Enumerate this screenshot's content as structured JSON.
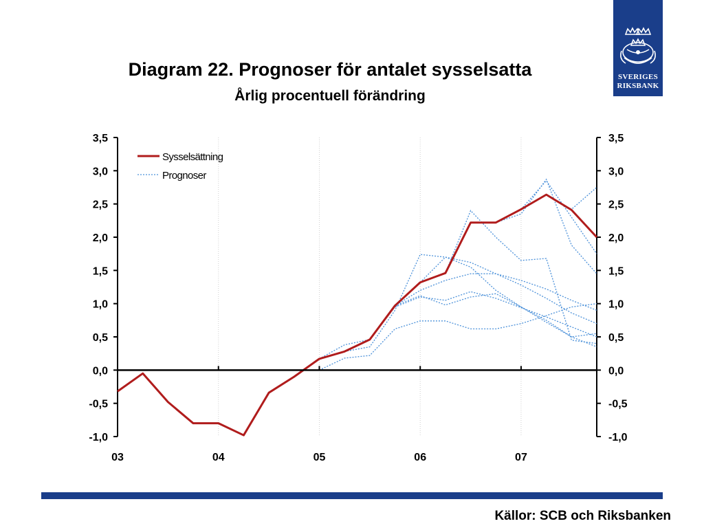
{
  "page": {
    "title": "Diagram 22. Prognoser för antalet sysselsatta",
    "subtitle": "Årlig procentuell förändring",
    "source": "Källor: SCB och Riksbanken",
    "logo": {
      "line1": "SVERIGES",
      "line2": "RIKSBANK",
      "icon": "riksbank-crest-icon",
      "color": "#1a3e8a"
    }
  },
  "chart_data": {
    "type": "line",
    "x_tick_labels": [
      "03",
      "04",
      "05",
      "06",
      "07"
    ],
    "y_tick_labels": [
      "3,5",
      "3,0",
      "2,5",
      "2,0",
      "1,5",
      "1,0",
      "0,5",
      "0,0",
      "-0,5",
      "-1,0"
    ],
    "y_ticks": [
      3.5,
      3.0,
      2.5,
      2.0,
      1.5,
      1.0,
      0.5,
      0.0,
      -0.5,
      -1.0
    ],
    "ylim": [
      -1.0,
      3.5
    ],
    "xlim": [
      2003.0,
      2007.75
    ],
    "legend": {
      "placement": "top-left",
      "entries": [
        "Sysselsättning",
        "Prognoser"
      ]
    },
    "colors": {
      "actual": "#b01c1c",
      "forecast": "#4a90d9",
      "axis": "#000000",
      "brand": "#1a3e8a"
    },
    "actual": {
      "name": "Sysselsättning",
      "points": [
        [
          2003.0,
          -0.32
        ],
        [
          2003.25,
          -0.05
        ],
        [
          2003.5,
          -0.48
        ],
        [
          2003.75,
          -0.8
        ],
        [
          2004.0,
          -0.8
        ],
        [
          2004.25,
          -0.98
        ],
        [
          2004.5,
          -0.34
        ],
        [
          2004.75,
          -0.1
        ],
        [
          2005.0,
          0.17
        ],
        [
          2005.25,
          0.28
        ],
        [
          2005.5,
          0.46
        ],
        [
          2005.75,
          0.97
        ],
        [
          2006.0,
          1.32
        ],
        [
          2006.25,
          1.46
        ],
        [
          2006.5,
          2.22
        ],
        [
          2006.75,
          2.22
        ],
        [
          2007.0,
          2.42
        ],
        [
          2007.25,
          2.64
        ],
        [
          2007.5,
          2.41
        ],
        [
          2007.75,
          2.0
        ]
      ]
    },
    "forecasts": {
      "name": "Prognoser",
      "series": [
        [
          [
            2005.0,
            0.17
          ],
          [
            2005.25,
            0.38
          ],
          [
            2005.5,
            0.46
          ],
          [
            2005.75,
            0.97
          ],
          [
            2006.0,
            1.2
          ],
          [
            2006.25,
            1.35
          ],
          [
            2006.5,
            1.45
          ],
          [
            2006.75,
            1.45
          ],
          [
            2007.0,
            1.35
          ],
          [
            2007.25,
            1.22
          ],
          [
            2007.5,
            1.05
          ],
          [
            2007.75,
            0.9
          ]
        ],
        [
          [
            2005.0,
            0.0
          ],
          [
            2005.25,
            0.18
          ],
          [
            2005.5,
            0.22
          ],
          [
            2005.75,
            0.62
          ],
          [
            2006.0,
            0.74
          ],
          [
            2006.25,
            0.74
          ],
          [
            2006.5,
            0.62
          ],
          [
            2006.75,
            0.62
          ],
          [
            2007.0,
            0.7
          ],
          [
            2007.25,
            0.82
          ],
          [
            2007.5,
            0.95
          ],
          [
            2007.75,
            1.0
          ]
        ],
        [
          [
            2005.25,
            0.28
          ],
          [
            2005.5,
            0.35
          ],
          [
            2005.75,
            0.9
          ],
          [
            2006.0,
            1.74
          ],
          [
            2006.25,
            1.7
          ],
          [
            2006.5,
            1.62
          ],
          [
            2006.75,
            1.45
          ],
          [
            2007.0,
            1.28
          ],
          [
            2007.25,
            1.08
          ],
          [
            2007.5,
            0.86
          ],
          [
            2007.75,
            0.7
          ]
        ],
        [
          [
            2005.5,
            0.46
          ],
          [
            2005.75,
            0.95
          ],
          [
            2006.0,
            1.1
          ],
          [
            2006.25,
            1.05
          ],
          [
            2006.5,
            1.18
          ],
          [
            2006.75,
            1.08
          ],
          [
            2007.0,
            0.94
          ],
          [
            2007.25,
            0.8
          ],
          [
            2007.5,
            0.65
          ],
          [
            2007.75,
            0.5
          ]
        ],
        [
          [
            2005.75,
            0.97
          ],
          [
            2006.0,
            1.12
          ],
          [
            2006.25,
            0.98
          ],
          [
            2006.5,
            1.1
          ],
          [
            2006.75,
            1.15
          ],
          [
            2007.0,
            0.95
          ],
          [
            2007.25,
            0.75
          ],
          [
            2007.5,
            0.5
          ],
          [
            2007.75,
            0.35
          ]
        ],
        [
          [
            2006.0,
            1.32
          ],
          [
            2006.25,
            1.7
          ],
          [
            2006.5,
            1.55
          ],
          [
            2006.75,
            1.2
          ],
          [
            2007.0,
            0.95
          ],
          [
            2007.25,
            0.72
          ],
          [
            2007.5,
            0.5
          ],
          [
            2007.75,
            0.55
          ]
        ],
        [
          [
            2006.25,
            1.46
          ],
          [
            2006.5,
            2.4
          ],
          [
            2006.75,
            2.0
          ],
          [
            2007.0,
            1.65
          ],
          [
            2007.25,
            1.68
          ],
          [
            2007.5,
            0.45
          ],
          [
            2007.75,
            0.4
          ]
        ],
        [
          [
            2006.75,
            2.22
          ],
          [
            2007.0,
            2.35
          ],
          [
            2007.25,
            2.87
          ],
          [
            2007.5,
            1.88
          ],
          [
            2007.75,
            1.45
          ]
        ],
        [
          [
            2007.0,
            2.42
          ],
          [
            2007.25,
            2.85
          ],
          [
            2007.5,
            2.3
          ],
          [
            2007.75,
            1.75
          ]
        ],
        [
          [
            2007.25,
            2.64
          ],
          [
            2007.5,
            2.42
          ],
          [
            2007.75,
            2.75
          ]
        ]
      ]
    }
  }
}
